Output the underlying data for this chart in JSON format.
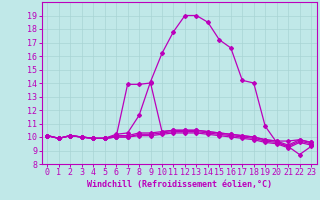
{
  "xlabel": "Windchill (Refroidissement éolien,°C)",
  "xlim": [
    -0.5,
    23.5
  ],
  "ylim": [
    8,
    20
  ],
  "yticks": [
    8,
    9,
    10,
    11,
    12,
    13,
    14,
    15,
    16,
    17,
    18,
    19
  ],
  "xticks": [
    0,
    1,
    2,
    3,
    4,
    5,
    6,
    7,
    8,
    9,
    10,
    11,
    12,
    13,
    14,
    15,
    16,
    17,
    18,
    19,
    20,
    21,
    22,
    23
  ],
  "background_color": "#c0e8e8",
  "grid_color": "#a8d4d4",
  "line_color": "#bb00bb",
  "lines": [
    {
      "x": [
        0,
        1,
        2,
        3,
        4,
        5,
        6,
        7,
        8,
        9,
        10,
        11,
        12,
        13,
        14,
        15,
        16,
        17,
        18,
        19,
        20,
        21,
        22,
        23
      ],
      "y": [
        10.1,
        9.9,
        10.1,
        10.0,
        9.9,
        9.9,
        10.2,
        10.3,
        11.6,
        14.1,
        16.2,
        17.8,
        19.0,
        19.0,
        18.5,
        17.2,
        16.6,
        14.2,
        14.0,
        10.8,
        9.6,
        9.3,
        8.7,
        9.3
      ]
    },
    {
      "x": [
        0,
        1,
        2,
        3,
        4,
        5,
        6,
        7,
        8,
        9,
        10,
        11,
        12,
        13,
        14,
        15,
        16,
        17,
        18,
        19,
        20,
        21,
        22,
        23
      ],
      "y": [
        10.1,
        9.9,
        10.1,
        10.0,
        9.9,
        9.9,
        10.0,
        13.9,
        13.9,
        14.0,
        10.4,
        10.5,
        10.5,
        10.5,
        10.4,
        10.3,
        10.2,
        10.1,
        10.0,
        9.8,
        9.7,
        9.7,
        9.8,
        9.6
      ]
    },
    {
      "x": [
        0,
        1,
        2,
        3,
        4,
        5,
        6,
        7,
        8,
        9,
        10,
        11,
        12,
        13,
        14,
        15,
        16,
        17,
        18,
        19,
        20,
        21,
        22,
        23
      ],
      "y": [
        10.1,
        9.9,
        10.1,
        10.0,
        9.9,
        9.9,
        10.1,
        10.1,
        10.3,
        10.3,
        10.4,
        10.5,
        10.5,
        10.5,
        10.4,
        10.3,
        10.2,
        10.1,
        10.0,
        9.8,
        9.7,
        9.4,
        9.8,
        9.6
      ]
    },
    {
      "x": [
        0,
        1,
        2,
        3,
        4,
        5,
        6,
        7,
        8,
        9,
        10,
        11,
        12,
        13,
        14,
        15,
        16,
        17,
        18,
        19,
        20,
        21,
        22,
        23
      ],
      "y": [
        10.1,
        9.9,
        10.1,
        10.0,
        9.9,
        9.9,
        10.0,
        10.0,
        10.2,
        10.2,
        10.3,
        10.4,
        10.4,
        10.4,
        10.3,
        10.2,
        10.1,
        10.0,
        9.9,
        9.7,
        9.6,
        9.3,
        9.7,
        9.5
      ]
    },
    {
      "x": [
        0,
        1,
        2,
        3,
        4,
        5,
        6,
        7,
        8,
        9,
        10,
        11,
        12,
        13,
        14,
        15,
        16,
        17,
        18,
        19,
        20,
        21,
        22,
        23
      ],
      "y": [
        10.1,
        9.9,
        10.1,
        10.0,
        9.9,
        9.9,
        10.0,
        10.0,
        10.1,
        10.1,
        10.2,
        10.3,
        10.3,
        10.3,
        10.2,
        10.1,
        10.0,
        9.9,
        9.8,
        9.6,
        9.5,
        9.2,
        9.6,
        9.4
      ]
    }
  ],
  "marker": "D",
  "markersize": 2.0,
  "linewidth": 0.9,
  "xlabel_fontsize": 6,
  "tick_fontsize": 6
}
